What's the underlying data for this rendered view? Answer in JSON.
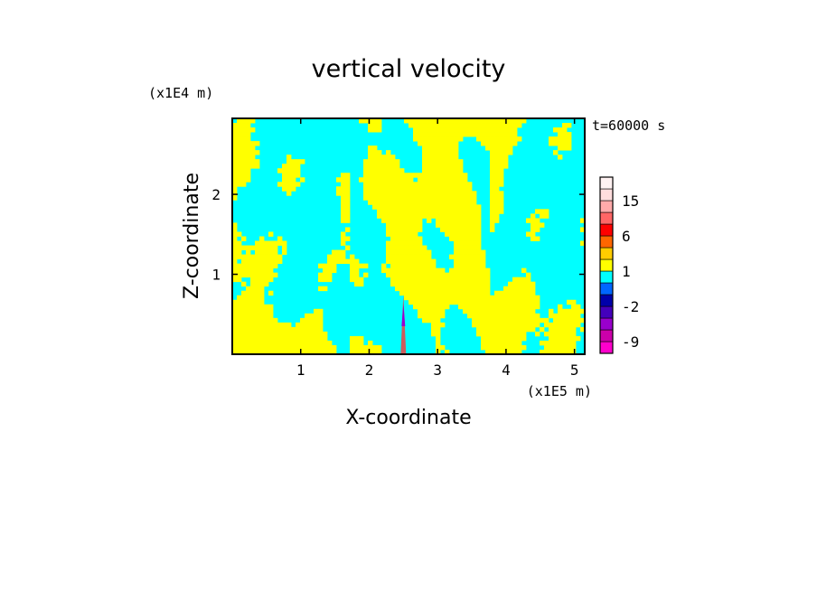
{
  "chart_data": {
    "type": "heatmap",
    "title": "vertical velocity",
    "time_label": "t=60000 s",
    "xlabel": "X-coordinate",
    "ylabel": "Z-coordinate",
    "x_scale_label": "(x1E5 m)",
    "y_scale_label": "(x1E4 m)",
    "xlim": [
      0,
      5.15
    ],
    "ylim": [
      0,
      2.95
    ],
    "x_ticks": [
      "1",
      "2",
      "3",
      "4",
      "5"
    ],
    "y_ticks": [
      "1",
      "2"
    ],
    "dominant_colors": {
      "positive": "#ffff00",
      "negative": "#00ffff",
      "frame": "#000000"
    },
    "colorbar": {
      "levels": [
        -12,
        -9,
        -6,
        -4,
        -2,
        -1,
        0,
        1,
        2,
        4,
        6,
        9,
        12,
        15,
        20,
        25
      ],
      "colors": [
        "#ff00cc",
        "#cc00aa",
        "#9900cc",
        "#4400bb",
        "#0000aa",
        "#0066ff",
        "#00ffff",
        "#ffff00",
        "#ffcc00",
        "#ff6600",
        "#ff0000",
        "#ff6666",
        "#ffaaaa",
        "#ffdddd",
        "#fff2f2"
      ],
      "tick_labels": [
        "-9",
        "-2",
        "1",
        "6",
        "15"
      ],
      "tick_values": [
        -9,
        -2,
        1,
        6,
        15
      ]
    }
  }
}
